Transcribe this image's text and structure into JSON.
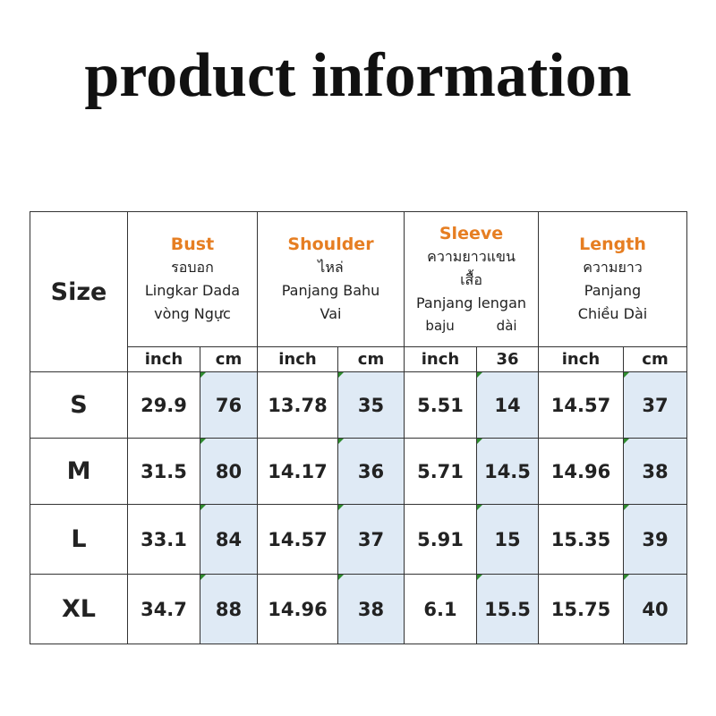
{
  "header": {
    "title": "product information"
  },
  "table": {
    "size_label": "Size",
    "groups": [
      {
        "name": "Bust",
        "lines": [
          "รอบอก",
          "Lingkar Dada",
          "vòng Ngực"
        ]
      },
      {
        "name": "Shoulder",
        "lines": [
          "ไหล่",
          "Panjang Bahu",
          "Vai"
        ]
      },
      {
        "name": "Sleeve",
        "lines": [
          "ความยาวแขน",
          "เสื้อ",
          "Panjang lengan"
        ],
        "split_line": [
          "baju",
          "dài"
        ]
      },
      {
        "name": "Length",
        "lines": [
          "ความยาว",
          "Panjang",
          "Chiều Dài"
        ]
      }
    ],
    "units": [
      "inch",
      "cm",
      "inch",
      "cm",
      "inch",
      "36",
      "inch",
      "cm"
    ],
    "rows": [
      [
        "S",
        "29.9",
        "76",
        "13.78",
        "35",
        "5.51",
        "14",
        "14.57",
        "37"
      ],
      [
        "M",
        "31.5",
        "80",
        "14.17",
        "36",
        "5.71",
        "14.5",
        "14.96",
        "38"
      ],
      [
        "L",
        "33.1",
        "84",
        "14.57",
        "37",
        "5.91",
        "15",
        "15.35",
        "39"
      ],
      [
        "XL",
        "34.7",
        "88",
        "14.96",
        "38",
        "6.1",
        "15.5",
        "15.75",
        "40"
      ]
    ]
  }
}
